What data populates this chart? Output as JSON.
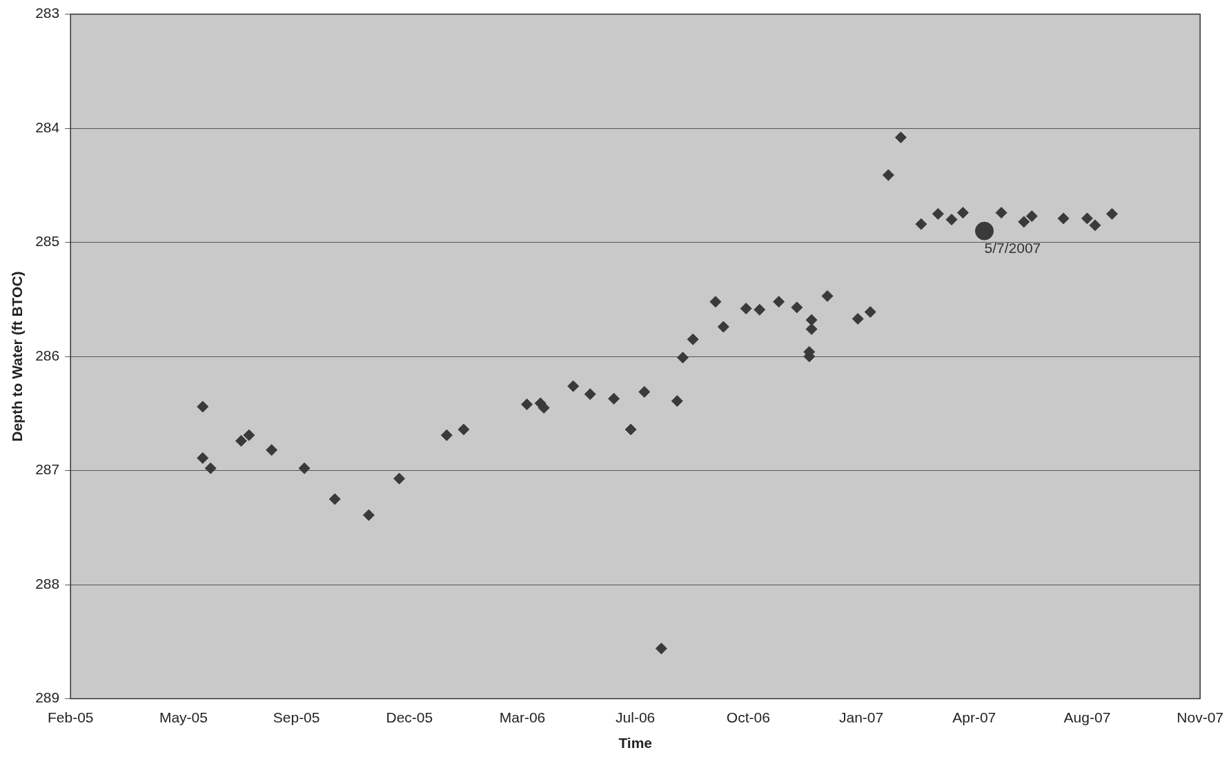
{
  "chart_data": {
    "type": "scatter",
    "xlabel": "Time",
    "ylabel": "Depth to Water (ft BTOC)",
    "xlim": [
      "2005-02-17",
      "2007-11-14"
    ],
    "xticks": [
      {
        "value": "2005-02-17",
        "label": "Feb-05"
      },
      {
        "value": "2005-05-28",
        "label": "May-05"
      },
      {
        "value": "2005-09-05",
        "label": "Sep-05"
      },
      {
        "value": "2005-12-14",
        "label": "Dec-05"
      },
      {
        "value": "2006-03-24",
        "label": "Mar-06"
      },
      {
        "value": "2006-07-02",
        "label": "Jul-06"
      },
      {
        "value": "2006-10-10",
        "label": "Oct-06"
      },
      {
        "value": "2007-01-18",
        "label": "Jan-07"
      },
      {
        "value": "2007-04-28",
        "label": "Apr-07"
      },
      {
        "value": "2007-08-06",
        "label": "Aug-07"
      },
      {
        "value": "2007-11-14",
        "label": "Nov-07"
      }
    ],
    "ylim": [
      289,
      283
    ],
    "yticks": [
      289,
      288,
      287,
      286,
      285,
      284,
      283
    ],
    "grid": "y",
    "legend": false,
    "series": [
      {
        "color": "#3a3a3a",
        "marker": "diamond",
        "x": [
          "2005-06-14",
          "2005-06-14",
          "2005-06-21",
          "2005-07-18",
          "2005-07-25",
          "2005-08-14",
          "2005-09-12",
          "2005-10-09",
          "2005-11-08",
          "2005-12-05",
          "2006-01-16",
          "2006-01-31",
          "2006-03-28",
          "2006-04-09",
          "2006-04-12",
          "2006-05-08",
          "2006-05-23",
          "2006-06-13",
          "2006-06-28",
          "2006-07-10",
          "2006-07-25",
          "2006-08-08",
          "2006-08-13",
          "2006-08-22",
          "2006-09-11",
          "2006-09-18",
          "2006-10-08",
          "2006-10-20",
          "2006-11-06",
          "2006-11-22",
          "2006-12-05",
          "2006-12-05",
          "2006-12-03",
          "2006-12-03",
          "2006-12-19",
          "2007-01-15",
          "2007-01-26",
          "2007-02-11",
          "2007-02-22",
          "2007-03-12",
          "2007-03-27",
          "2007-04-08",
          "2007-04-18",
          "2007-05-22",
          "2007-06-11",
          "2007-06-18",
          "2007-07-16",
          "2007-08-06",
          "2007-08-13",
          "2007-08-28"
        ],
        "values": [
          286.44,
          286.89,
          286.98,
          286.74,
          286.69,
          286.82,
          286.98,
          287.25,
          287.39,
          287.07,
          286.69,
          286.64,
          286.42,
          286.41,
          286.45,
          286.26,
          286.33,
          286.37,
          286.64,
          286.31,
          288.56,
          286.39,
          286.01,
          285.85,
          285.52,
          285.74,
          285.58,
          285.59,
          285.52,
          285.57,
          285.68,
          285.76,
          285.96,
          286.0,
          285.47,
          285.67,
          285.61,
          284.41,
          284.08,
          284.84,
          284.75,
          284.8,
          284.74,
          284.74,
          284.82,
          284.77,
          284.79,
          284.79,
          284.85,
          284.75
        ]
      },
      {
        "color": "#3a3a3a",
        "marker": "circle",
        "x": [
          "2007-05-07"
        ],
        "values": [
          284.9
        ]
      }
    ],
    "annotations": [
      {
        "text": "5/7/2007",
        "x": "2007-05-07",
        "y": 284.9
      }
    ]
  }
}
